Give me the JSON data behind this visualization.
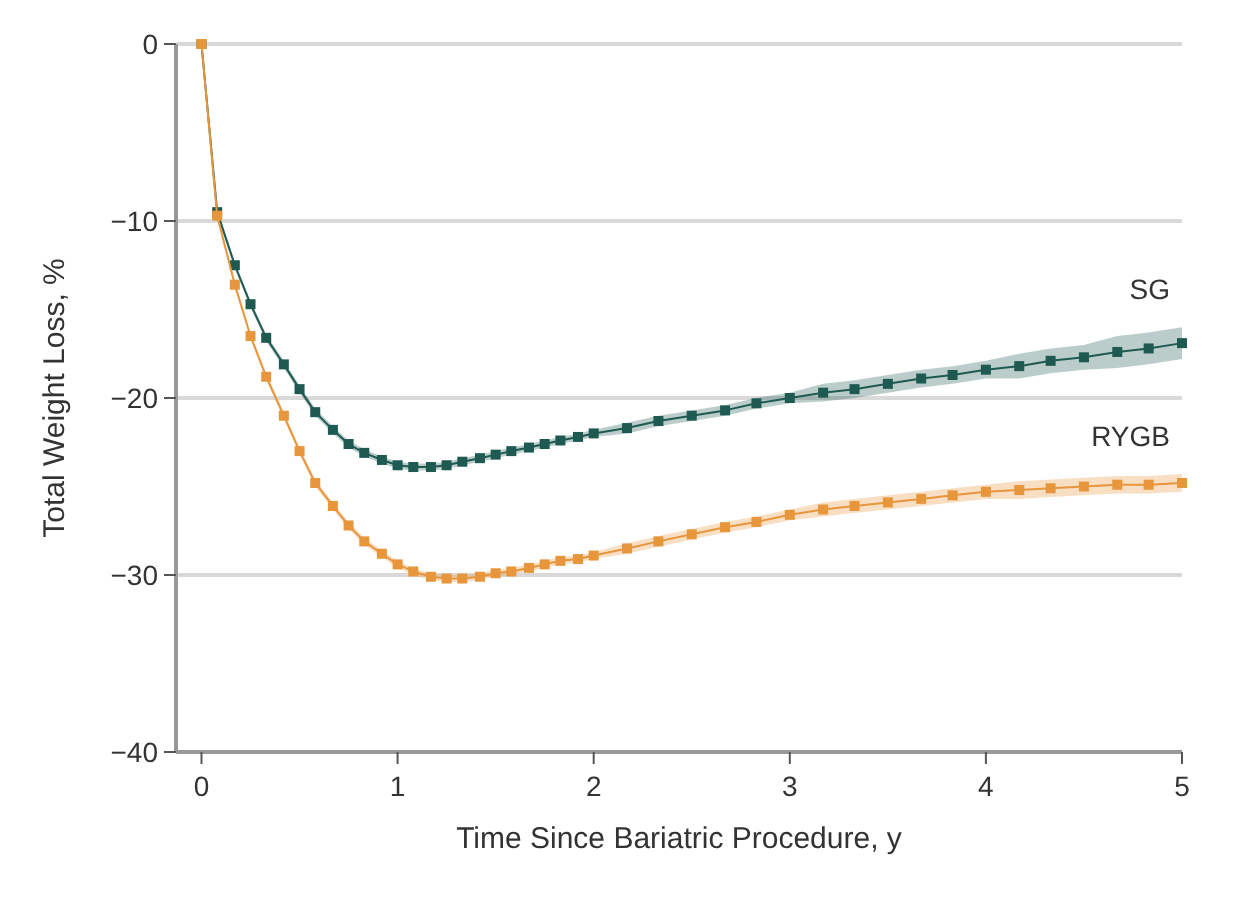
{
  "chart_data": {
    "type": "line",
    "xlabel": "Time Since Bariatric Procedure, y",
    "ylabel": "Total Weight Loss, %",
    "xlim": [
      -0.13,
      5
    ],
    "xticks": [
      0,
      1,
      2,
      3,
      4,
      5
    ],
    "ylim": [
      -40,
      0
    ],
    "yticks": [
      -40,
      -30,
      -20,
      -10,
      0
    ],
    "grid": "y",
    "legend": false,
    "marker": "square",
    "line_style": "solid",
    "x": [
      0,
      0.08,
      0.17,
      0.25,
      0.33,
      0.42,
      0.5,
      0.58,
      0.67,
      0.75,
      0.83,
      0.92,
      1,
      1.08,
      1.17,
      1.25,
      1.33,
      1.42,
      1.5,
      1.58,
      1.67,
      1.75,
      1.83,
      1.92,
      2,
      2.17,
      2.33,
      2.5,
      2.67,
      2.83,
      3,
      3.17,
      3.33,
      3.5,
      3.67,
      3.83,
      4,
      4.17,
      4.33,
      4.5,
      4.67,
      4.83,
      5
    ],
    "series": [
      {
        "name": "SG",
        "color": "#1e5a52",
        "values": [
          0,
          -9.5,
          -12.5,
          -14.7,
          -16.6,
          -18.1,
          -19.5,
          -20.8,
          -21.8,
          -22.6,
          -23.1,
          -23.5,
          -23.8,
          -23.9,
          -23.9,
          -23.8,
          -23.6,
          -23.4,
          -23.2,
          -23.0,
          -22.8,
          -22.6,
          -22.4,
          -22.2,
          -22.0,
          -21.7,
          -21.3,
          -21.0,
          -20.7,
          -20.3,
          -20.0,
          -19.7,
          -19.5,
          -19.2,
          -18.9,
          -18.7,
          -18.4,
          -18.2,
          -17.9,
          -17.7,
          -17.4,
          -17.2,
          -16.9
        ],
        "lower": [
          0,
          -9.7,
          -12.7,
          -14.9,
          -16.8,
          -18.3,
          -19.7,
          -21.0,
          -22.0,
          -22.8,
          -23.3,
          -23.7,
          -24.0,
          -24.1,
          -24.1,
          -24.0,
          -23.8,
          -23.6,
          -23.4,
          -23.2,
          -23.0,
          -22.8,
          -22.6,
          -22.4,
          -22.2,
          -22.0,
          -21.6,
          -21.3,
          -21.0,
          -20.6,
          -20.3,
          -20.2,
          -20.0,
          -19.7,
          -19.4,
          -19.2,
          -18.9,
          -18.9,
          -18.6,
          -18.4,
          -18.3,
          -18.1,
          -17.8
        ],
        "upper": [
          0,
          -9.3,
          -12.3,
          -14.5,
          -16.4,
          -17.9,
          -19.3,
          -20.6,
          -21.6,
          -22.4,
          -22.9,
          -23.3,
          -23.6,
          -23.7,
          -23.7,
          -23.6,
          -23.4,
          -23.2,
          -23.0,
          -22.8,
          -22.6,
          -22.4,
          -22.2,
          -22.0,
          -21.8,
          -21.4,
          -21.0,
          -20.7,
          -20.4,
          -20.0,
          -19.7,
          -19.2,
          -19.0,
          -18.7,
          -18.4,
          -18.2,
          -17.9,
          -17.5,
          -17.2,
          -17.0,
          -16.5,
          -16.3,
          -16.0
        ]
      },
      {
        "name": "RYGB",
        "color": "#e8963c",
        "values": [
          0,
          -9.7,
          -13.6,
          -16.5,
          -18.8,
          -21.0,
          -23.0,
          -24.8,
          -26.1,
          -27.2,
          -28.1,
          -28.8,
          -29.4,
          -29.8,
          -30.1,
          -30.2,
          -30.2,
          -30.1,
          -29.9,
          -29.8,
          -29.6,
          -29.4,
          -29.2,
          -29.1,
          -28.9,
          -28.5,
          -28.1,
          -27.7,
          -27.3,
          -27.0,
          -26.6,
          -26.3,
          -26.1,
          -25.9,
          -25.7,
          -25.5,
          -25.3,
          -25.2,
          -25.1,
          -25.0,
          -24.9,
          -24.9,
          -24.8
        ],
        "lower": [
          0,
          -9.9,
          -13.8,
          -16.7,
          -19.0,
          -21.2,
          -23.2,
          -25.0,
          -26.3,
          -27.4,
          -28.3,
          -29.0,
          -29.6,
          -30.0,
          -30.3,
          -30.4,
          -30.4,
          -30.3,
          -30.1,
          -30.0,
          -29.8,
          -29.6,
          -29.4,
          -29.3,
          -29.1,
          -28.8,
          -28.4,
          -28.0,
          -27.6,
          -27.3,
          -26.9,
          -26.7,
          -26.5,
          -26.3,
          -26.1,
          -25.9,
          -25.7,
          -25.7,
          -25.6,
          -25.5,
          -25.4,
          -25.4,
          -25.3
        ],
        "upper": [
          0,
          -9.5,
          -13.4,
          -16.3,
          -18.6,
          -20.8,
          -22.8,
          -24.6,
          -25.9,
          -27.0,
          -27.9,
          -28.6,
          -29.2,
          -29.6,
          -29.9,
          -30.0,
          -30.0,
          -29.9,
          -29.7,
          -29.6,
          -29.4,
          -29.2,
          -29.0,
          -28.9,
          -28.7,
          -28.2,
          -27.8,
          -27.4,
          -27.0,
          -26.7,
          -26.3,
          -25.9,
          -25.7,
          -25.5,
          -25.3,
          -25.1,
          -24.9,
          -24.7,
          -24.6,
          -24.5,
          -24.4,
          -24.4,
          -24.3
        ]
      }
    ]
  }
}
